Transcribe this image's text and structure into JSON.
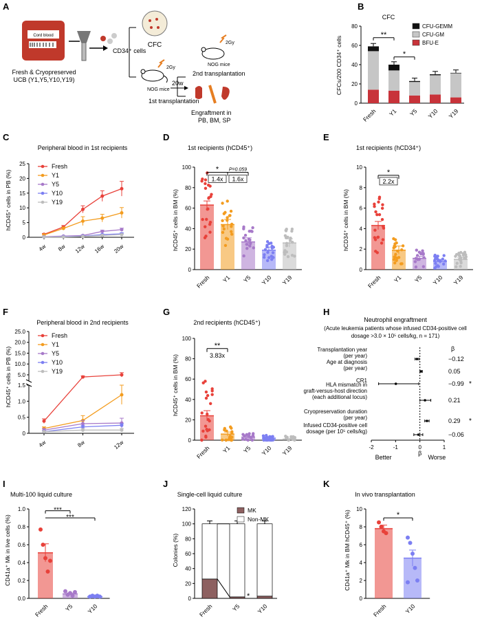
{
  "colors": {
    "red": "#e8413a",
    "orange": "#f39c1f",
    "purple": "#a779c9",
    "blue": "#7c7ff2",
    "gray": "#bdbdbd",
    "black": "#111111",
    "mkbrown": "#8d6060",
    "bfu": "#c8333a",
    "cfugm": "#c6c6c6"
  },
  "panels": {
    "A": {
      "letter": "A",
      "cfc": "CFC",
      "cd34": "CD34⁺ cells",
      "cord": "Cord blood",
      "ucb1": "Fresh & Cryopreserved",
      "ucb2": "UCB (Y1,Y5,Y10,Y19)",
      "gy1": "2Gy",
      "gy2": "2Gy",
      "nog1": "NOG mice",
      "nog2": "NOG mice",
      "t1": "1st transplantation",
      "t2": "2nd transplantation",
      "w20": "20w",
      "eng1": "Engraftment in",
      "eng2": "PB, BM, SP"
    },
    "B": {
      "letter": "B",
      "title": "CFC",
      "ylabel": "CFCs/200 CD34⁺ cells"
    },
    "C": {
      "letter": "C",
      "title": "Peripheral blood in 1st recipients",
      "ylabel": "hCD45⁺ cells in PB (%)"
    },
    "D": {
      "letter": "D",
      "title": "1st recipients (hCD45⁺)",
      "ylabel": "hCD45⁺ cells in BM (%)",
      "ann1": "1.4x",
      "ann2": "1.6x",
      "p": "P=0.059",
      "star": "*"
    },
    "E": {
      "letter": "E",
      "title": "1st recipients  (hCD34⁺)",
      "ylabel": "hCD34⁺ cells in BM (%)",
      "ann1": "2.2x",
      "star": "*"
    },
    "F": {
      "letter": "F",
      "title": "Peripheral blood in 2nd recipients",
      "ylabel": "hCD45⁺ cells in PB (%)"
    },
    "G": {
      "letter": "G",
      "title": "2nd recipients  (hCD45⁺)",
      "ylabel": "hCD45⁺ cells in BM (%)",
      "ann1": "3.83x",
      "star": "**"
    },
    "H": {
      "letter": "H",
      "title": "Neutrophil engraftment",
      "sub1": "(Acute leukemia patients whose infused CD34-positive cell",
      "sub2": "dosage >3.0 × 10⁵ cells/kg, n = 171)",
      "beta": "β",
      "xlabel": "β",
      "better": "Better",
      "worse": "Worse"
    },
    "I": {
      "letter": "I",
      "title": "Multi-100 liquid culture",
      "ylabel": "CD41a⁺ Mk in live cells (%)",
      "star1": "***",
      "star2": "***"
    },
    "J": {
      "letter": "J",
      "title": "Single-cell liquid culture",
      "ylabel": "Colonies (%)",
      "star": "*"
    },
    "K": {
      "letter": "K",
      "title": "In vivo transplantation",
      "ylabel": "CD41a⁺ Mk in BM hCD45⁺ (%)",
      "star": "*"
    }
  },
  "chart_data": [
    {
      "id": "B",
      "type": "bar",
      "title": "CFC",
      "ylabel": "CFCs/200 CD34⁺ cells",
      "categories": [
        "Fresh",
        "Y1",
        "Y5",
        "Y10",
        "Y19"
      ],
      "ylim": [
        0,
        80
      ],
      "series": [
        {
          "name": "BFU-E",
          "values": [
            14,
            13,
            8,
            9,
            6
          ]
        },
        {
          "name": "CFU-GM",
          "values": [
            40,
            21,
            14,
            20,
            25
          ]
        },
        {
          "name": "CFU-GEMM",
          "values": [
            5,
            6,
            1,
            1,
            0.5
          ]
        }
      ],
      "sig": [
        {
          "label": "**"
        },
        {
          "label": "*"
        }
      ]
    },
    {
      "id": "C",
      "type": "line",
      "title": "Peripheral blood in 1st recipients",
      "ylabel": "hCD45⁺ cells in PB (%)",
      "x": [
        "4w",
        "8w",
        "12w",
        "16w",
        "20w"
      ],
      "ylim": [
        0,
        25
      ],
      "series": [
        {
          "name": "Fresh",
          "values": [
            1,
            3.5,
            9.5,
            14,
            16.5
          ],
          "err": [
            0.3,
            0.5,
            1.2,
            1.8,
            2.5
          ]
        },
        {
          "name": "Y1",
          "values": [
            0.8,
            3,
            5.5,
            6.5,
            8.3
          ],
          "err": [
            0.2,
            0.5,
            1.5,
            1.3,
            1.8
          ]
        },
        {
          "name": "Y5",
          "values": [
            0.2,
            0.4,
            0.6,
            2,
            2.6
          ],
          "err": [
            0.1,
            0.1,
            0.2,
            0.4,
            0.5
          ]
        },
        {
          "name": "Y10",
          "values": [
            0.1,
            0.2,
            0.4,
            0.9,
            1.2
          ],
          "err": [
            0.05,
            0.1,
            0.1,
            0.2,
            0.3
          ]
        },
        {
          "name": "Y19",
          "values": [
            0.1,
            0.1,
            0.3,
            0.6,
            0.9
          ],
          "err": [
            0.05,
            0.05,
            0.1,
            0.2,
            0.2
          ]
        }
      ]
    },
    {
      "id": "D",
      "type": "bar",
      "title": "1st recipients (hCD45⁺)",
      "categories": [
        "Fresh",
        "Y1",
        "Y5",
        "Y10",
        "Y19"
      ],
      "values": [
        63,
        44,
        27,
        19,
        26
      ],
      "err": [
        4,
        5,
        4,
        3,
        4
      ],
      "ylim": [
        0,
        100
      ]
    },
    {
      "id": "E",
      "type": "bar",
      "title": "1st recipients (hCD34⁺)",
      "categories": [
        "Fresh",
        "Y1",
        "Y5",
        "Y10",
        "Y19"
      ],
      "values": [
        4.3,
        1.9,
        1.1,
        0.8,
        1.0
      ],
      "err": [
        0.4,
        0.4,
        0.2,
        0.2,
        0.2
      ],
      "ylim": [
        0,
        10
      ]
    },
    {
      "id": "F",
      "type": "line",
      "title": "Peripheral blood in 2nd recipients",
      "x": [
        "4w",
        "8w",
        "12w"
      ],
      "yticks_lower": [
        "0",
        "0.5",
        "1.0",
        "1.5"
      ],
      "yticks_upper": [
        "5",
        "10",
        "15",
        "20",
        "25"
      ],
      "series": [
        {
          "name": "Fresh",
          "values": [
            0.38,
            4,
            5
          ],
          "err": [
            0.07,
            0.5,
            1
          ]
        },
        {
          "name": "Y1",
          "values": [
            0.15,
            0.4,
            1.2
          ],
          "err": [
            0.05,
            0.15,
            0.3
          ]
        },
        {
          "name": "Y5",
          "values": [
            0.1,
            0.3,
            0.32
          ],
          "err": [
            0.05,
            0.1,
            0.15
          ]
        },
        {
          "name": "Y10",
          "values": [
            0.05,
            0.2,
            0.25
          ],
          "err": [
            0.03,
            0.05,
            0.05
          ]
        },
        {
          "name": "Y19",
          "values": [
            0.05,
            0.1,
            0.1
          ],
          "err": [
            0.02,
            0.05,
            0.05
          ]
        }
      ]
    },
    {
      "id": "G",
      "type": "bar",
      "title": "2nd recipients (hCD45⁺)",
      "categories": [
        "Fresh",
        "Y1",
        "Y5",
        "Y10",
        "Y19"
      ],
      "values": [
        24,
        6,
        3,
        2,
        1
      ],
      "err": [
        5,
        2,
        1,
        1,
        0.5
      ],
      "ylim": [
        0,
        100
      ]
    },
    {
      "id": "H",
      "type": "forest",
      "xlim": [
        -2,
        1
      ],
      "xticks": [
        "-2",
        "-1",
        "0",
        "1"
      ],
      "rows": [
        {
          "label": [
            "Transplantation year",
            "(per year)"
          ],
          "beta": "−0.12",
          "est": -0.12,
          "lo": -0.2,
          "hi": -0.04
        },
        {
          "label": [
            "Age at diagnosis",
            "(per year)"
          ],
          "beta": "0.05",
          "est": 0.05,
          "lo": 0,
          "hi": 0.1
        },
        {
          "label": [
            "CR1"
          ],
          "beta": "−0.99",
          "star": "*",
          "est": -0.99,
          "lo": -1.7,
          "hi": -0.05
        },
        {
          "label": [
            "HLA mismatch in",
            "graft-versus-host direction",
            "(each additional locus)"
          ],
          "beta": "0.21",
          "est": 0.21,
          "lo": 0,
          "hi": 0.45
        },
        {
          "label": [
            "Cryopreservation duration",
            "(per year)"
          ],
          "beta": "0.29",
          "star": "*",
          "est": 0.29,
          "lo": 0.2,
          "hi": 0.38
        },
        {
          "label": [
            "Infused CD34-positive cell",
            "dosage (per 10⁵ cells/kg)"
          ],
          "beta": "−0.06",
          "est": -0.06,
          "lo": -0.25,
          "hi": 0.12
        }
      ]
    },
    {
      "id": "I",
      "type": "bar",
      "title": "Multi-100 liquid culture",
      "categories": [
        "Fresh",
        "Y5",
        "Y10"
      ],
      "values": [
        0.51,
        0.05,
        0.02
      ],
      "err": [
        0.1,
        0.01,
        0.005
      ],
      "ylim": [
        0,
        1.0
      ],
      "points": [
        [
          0.77,
          0.6,
          0.45,
          0.3,
          0.42
        ],
        [
          0.08,
          0.04,
          0.06,
          0.03,
          0.07
        ],
        [
          0.02,
          0.03,
          0.02,
          0.03,
          0.02
        ]
      ]
    },
    {
      "id": "J",
      "type": "bar",
      "title": "Single-cell liquid culture",
      "categories": [
        "Fresh",
        "Y5",
        "Y10"
      ],
      "ylim": [
        0,
        120
      ],
      "series": [
        {
          "name": "MK",
          "values": [
            26,
            2,
            3
          ]
        },
        {
          "name": "Non-MK",
          "values": [
            74,
            98,
            97
          ]
        }
      ]
    },
    {
      "id": "K",
      "type": "bar",
      "title": "In vivo transplantation",
      "categories": [
        "Fresh",
        "Y10"
      ],
      "values": [
        7.8,
        4.5
      ],
      "err": [
        0.4,
        0.9
      ],
      "ylim": [
        0,
        10
      ],
      "points": [
        [
          8.5,
          8,
          7.5,
          7.3
        ],
        [
          6.8,
          6.2,
          5,
          3.4,
          2,
          1.8
        ]
      ]
    }
  ]
}
